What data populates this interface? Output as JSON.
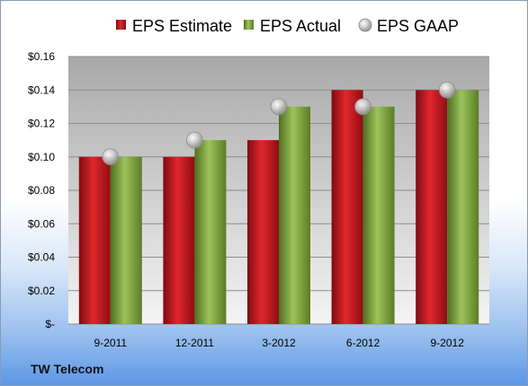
{
  "company_label": "TW Telecom",
  "chart_data": {
    "type": "bar",
    "categories": [
      "9-2011",
      "12-2011",
      "3-2012",
      "6-2012",
      "9-2012"
    ],
    "series": [
      {
        "name": "EPS Estimate",
        "type": "bar",
        "color": "#c0141c",
        "values": [
          0.1,
          0.1,
          0.11,
          0.14,
          0.14
        ]
      },
      {
        "name": "EPS Actual",
        "type": "bar",
        "color": "#7fa63a",
        "values": [
          0.1,
          0.11,
          0.13,
          0.13,
          0.14
        ]
      },
      {
        "name": "EPS GAAP",
        "type": "marker",
        "color": "#b5b5b5",
        "values": [
          0.1,
          0.11,
          0.13,
          0.13,
          0.14
        ]
      }
    ],
    "ylim": [
      0,
      0.16
    ],
    "y_ticks": [
      "$-",
      "$0.02",
      "$0.04",
      "$0.06",
      "$0.08",
      "$0.10",
      "$0.12",
      "$0.14",
      "$0.16"
    ],
    "y_tick_values": [
      0,
      0.02,
      0.04,
      0.06,
      0.08,
      0.1,
      0.12,
      0.14,
      0.16
    ],
    "grid": true,
    "legend_position": "top"
  }
}
